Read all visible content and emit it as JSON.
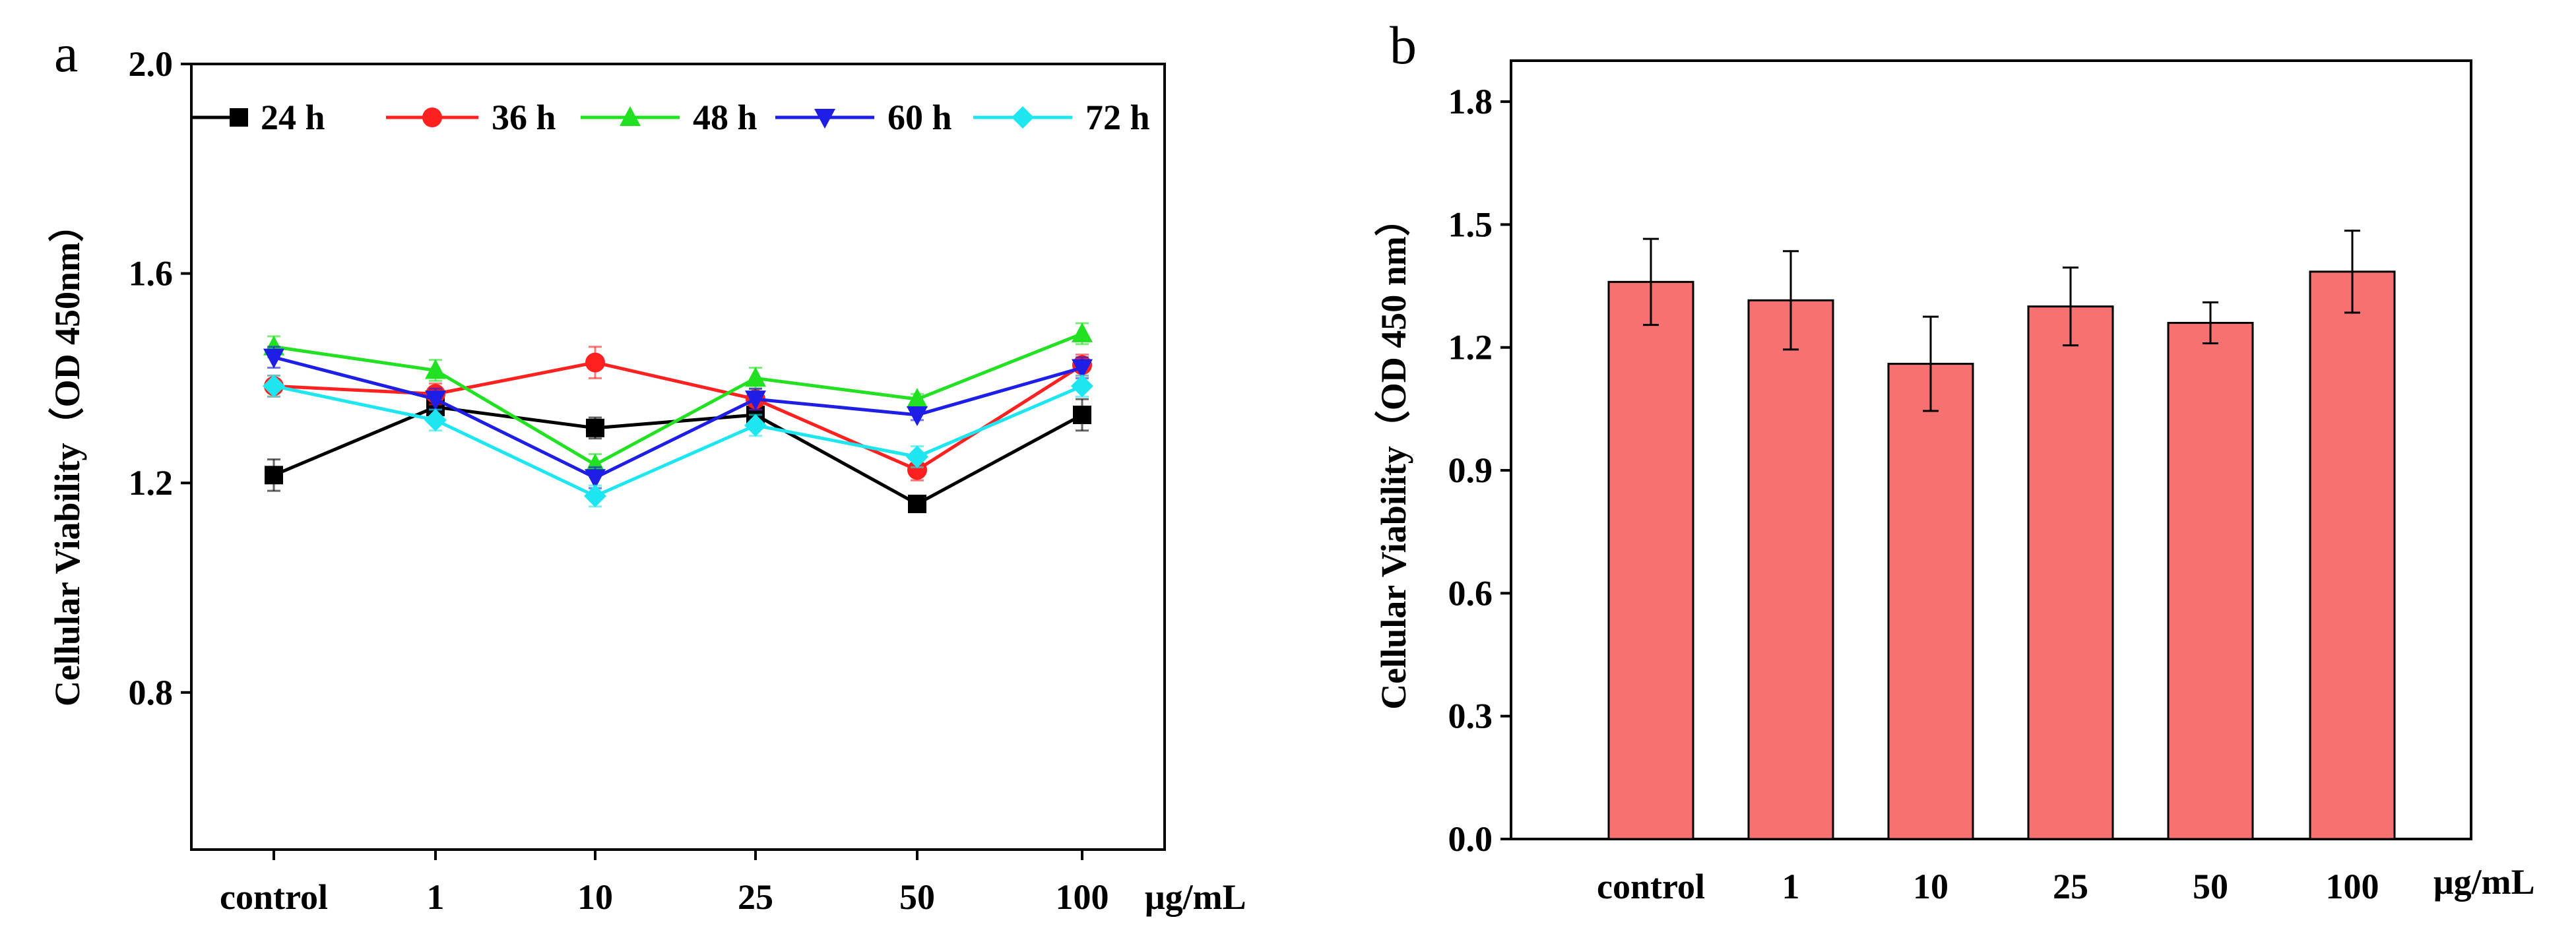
{
  "chart_data": [
    {
      "panel": "a",
      "type": "line",
      "title": "",
      "ylabel": "Cellular Viability（OD 450nm）",
      "xlabel": "",
      "x_unit_label": "μg/mL",
      "categories": [
        "control",
        "1",
        "10",
        "25",
        "50",
        "100"
      ],
      "ylim": [
        0.5,
        2.0
      ],
      "yticks": [
        0.8,
        1.2,
        1.6,
        2.0
      ],
      "ytick_labels": [
        "0.8",
        "1.2",
        "1.6",
        "2.0"
      ],
      "legend_position": "top",
      "grid": false,
      "series": [
        {
          "name": "24 h",
          "color": "#000000",
          "marker": "square",
          "values": [
            1.215,
            1.345,
            1.305,
            1.33,
            1.16,
            1.33
          ],
          "errors": [
            0.03,
            0.02,
            0.02,
            0.02,
            0.01,
            0.03
          ]
        },
        {
          "name": "36 h",
          "color": "#ff2020",
          "marker": "circle",
          "values": [
            1.385,
            1.37,
            1.43,
            1.36,
            1.225,
            1.425
          ],
          "errors": [
            0.02,
            0.02,
            0.03,
            0.02,
            0.02,
            0.02
          ]
        },
        {
          "name": "48 h",
          "color": "#22e022",
          "marker": "triangle-up",
          "values": [
            1.46,
            1.415,
            1.235,
            1.4,
            1.36,
            1.485
          ],
          "errors": [
            0.02,
            0.02,
            0.02,
            0.02,
            0.01,
            0.02
          ]
        },
        {
          "name": "60 h",
          "color": "#1e1ee6",
          "marker": "triangle-down",
          "values": [
            1.44,
            1.36,
            1.21,
            1.36,
            1.33,
            1.42
          ],
          "errors": [
            0.02,
            0.02,
            0.02,
            0.02,
            0.01,
            0.02
          ]
        },
        {
          "name": "72 h",
          "color": "#1ee6f0",
          "marker": "diamond",
          "values": [
            1.385,
            1.32,
            1.175,
            1.31,
            1.25,
            1.385
          ],
          "errors": [
            0.02,
            0.02,
            0.02,
            0.02,
            0.02,
            0.02
          ]
        }
      ]
    },
    {
      "panel": "b",
      "type": "bar",
      "title": "",
      "ylabel": "Cellular Viability（OD 450 nm）",
      "xlabel": "",
      "x_unit_label": "μg/mL",
      "categories": [
        "control",
        "1",
        "10",
        "25",
        "50",
        "100"
      ],
      "values": [
        1.36,
        1.315,
        1.16,
        1.3,
        1.26,
        1.385
      ],
      "errors": [
        0.105,
        0.12,
        0.115,
        0.095,
        0.05,
        0.1
      ],
      "bar_color": "#f87171",
      "ylim": [
        0.0,
        1.9
      ],
      "yticks": [
        0.0,
        0.3,
        0.6,
        0.9,
        1.2,
        1.5,
        1.8
      ],
      "ytick_labels": [
        "0.0",
        "0.3",
        "0.6",
        "0.9",
        "1.2",
        "1.5",
        "1.8"
      ],
      "grid": false
    }
  ]
}
